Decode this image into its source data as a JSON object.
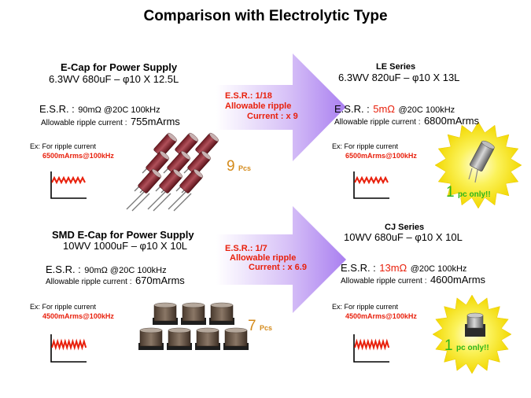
{
  "title": "Comparison with Electrolytic Type",
  "top": {
    "left": {
      "heading": "E-Cap for Power Supply",
      "spec": "6.3WV 680uF – φ10 X 12.5L",
      "esr_label": "E.S.R. :",
      "esr_value": "90mΩ @20C 100kHz",
      "ripple_label": "Allowable ripple current :",
      "ripple_value": "755mArms",
      "ex_label": "Ex:  For ripple current",
      "ex_value": "6500mArms@100kHz",
      "count_num": "9",
      "count_unit": "Pcs"
    },
    "arrow": {
      "line1": "E.S.R.: 1/18",
      "line2": "Allowable ripple",
      "line3": "Current : x 9"
    },
    "right": {
      "heading": "LE Series",
      "spec": "6.3WV 820uF – φ10 X 13L",
      "esr_label": "E.S.R. :",
      "esr_hl": "5mΩ",
      "esr_rest": "@20C 100kHz",
      "ripple_label": "Allowable ripple current :",
      "ripple_value": "6800mArms",
      "ex_label": "Ex:  For ripple current",
      "ex_value": "6500mArms@100kHz",
      "badge_num": "1",
      "badge_text": "pc only!!"
    }
  },
  "bottom": {
    "left": {
      "heading": "SMD E-Cap for Power Supply",
      "spec": "10WV 1000uF – φ10 X 10L",
      "esr_label": "E.S.R. :",
      "esr_value": "90mΩ @20C 100kHz",
      "ripple_label": "Allowable ripple current :",
      "ripple_value": "670mArms",
      "ex_label": "Ex:  For ripple current",
      "ex_value": "4500mArms@100kHz",
      "count_num": "7",
      "count_unit": "Pcs"
    },
    "arrow": {
      "line1": "E.S.R.: 1/7",
      "line2": "Allowable ripple",
      "line3": "Current : x 6.9"
    },
    "right": {
      "heading": "CJ Series",
      "spec": "10WV 680uF – φ10 X 10L",
      "esr_label": "E.S.R. :",
      "esr_hl": "13mΩ",
      "esr_rest": "@20C 100kHz",
      "ripple_label": "Allowable ripple current :",
      "ripple_value": "4600mArms",
      "ex_label": "Ex:  For ripple current",
      "ex_value": "4500mArms@100kHz",
      "badge_num": "1",
      "badge_text": "pc only!!"
    }
  },
  "colors": {
    "highlight_red": "#e8200c",
    "badge_green": "#2bb51a",
    "count_orange": "#d48a1a",
    "arrow_purple": "#b58cf0",
    "starburst_yellow": "#f6e60a"
  }
}
